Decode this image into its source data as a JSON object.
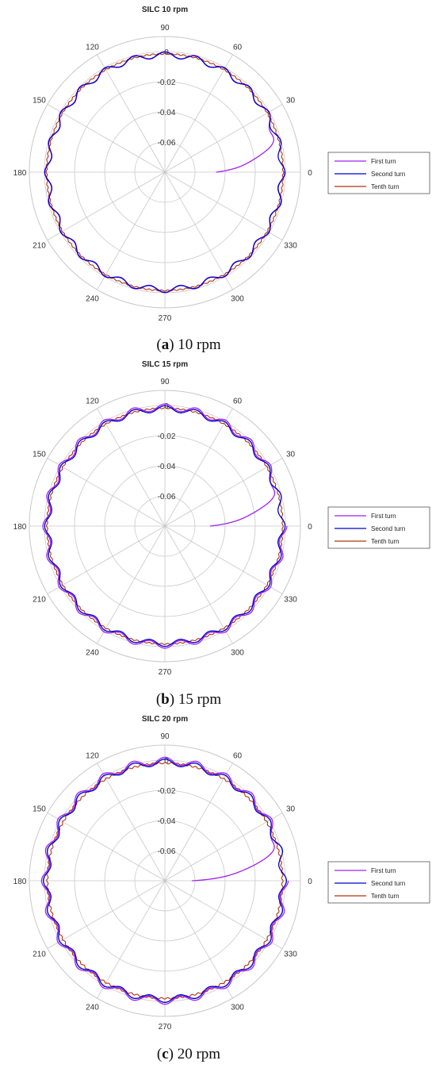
{
  "colors": {
    "first_turn": "#a020f0",
    "second_turn": "#0000cc",
    "tenth_turn": "#b03010",
    "grid": "#c8c8c8"
  },
  "chart_data": [
    {
      "type": "polar-line",
      "title": "SILC 10 rpm",
      "caption_letter": "a",
      "caption_text": " 10 rpm",
      "angle_labels": [
        "0",
        "30",
        "60",
        "90",
        "120",
        "150",
        "180",
        "210",
        "240",
        "270",
        "300",
        "330"
      ],
      "radial_ticks": [
        "-0.06",
        "-0.04",
        "-0.02",
        "0"
      ],
      "rlim": [
        -0.08,
        0.01
      ],
      "grid": true,
      "legend_position": "right",
      "series": [
        {
          "name": "First turn",
          "color_key": "first_turn",
          "base": -0.0022,
          "ripple_amplitude": 0.0021,
          "ripple_cycles": 24,
          "start_radius": -0.046,
          "transient_end_deg": 30
        },
        {
          "name": "Second turn",
          "color_key": "second_turn",
          "base": -0.0022,
          "ripple_amplitude": 0.0019,
          "ripple_cycles": 24
        },
        {
          "name": "Tenth turn",
          "color_key": "tenth_turn",
          "base": -0.0015,
          "ripple_amplitude": 0.0004,
          "ripple_cycles": 120
        }
      ]
    },
    {
      "type": "polar-line",
      "title": "SILC 15 rpm",
      "caption_letter": "b",
      "caption_text": " 15 rpm",
      "angle_labels": [
        "0",
        "30",
        "60",
        "90",
        "120",
        "150",
        "180",
        "210",
        "240",
        "270",
        "300",
        "330"
      ],
      "radial_ticks": [
        "-0.06",
        "-0.04",
        "-0.02",
        "0"
      ],
      "rlim": [
        -0.08,
        0.01
      ],
      "grid": true,
      "legend_position": "right",
      "series": [
        {
          "name": "First turn",
          "color_key": "first_turn",
          "base": -0.0012,
          "ripple_amplitude": 0.0022,
          "ripple_cycles": 24,
          "start_radius": -0.05,
          "transient_end_deg": 30
        },
        {
          "name": "Second turn",
          "color_key": "second_turn",
          "base": -0.0022,
          "ripple_amplitude": 0.002,
          "ripple_cycles": 24
        },
        {
          "name": "Tenth turn",
          "color_key": "tenth_turn",
          "base": -0.0018,
          "ripple_amplitude": 0.0004,
          "ripple_cycles": 120
        }
      ]
    },
    {
      "type": "polar-line",
      "title": "SILC 20 rpm",
      "caption_letter": "c",
      "caption_text": " 20 rpm",
      "angle_labels": [
        "0",
        "30",
        "60",
        "90",
        "120",
        "150",
        "180",
        "210",
        "240",
        "270",
        "300",
        "330"
      ],
      "radial_ticks": [
        "-0.06",
        "-0.04",
        "-0.02",
        "0"
      ],
      "rlim": [
        -0.08,
        0.01
      ],
      "grid": true,
      "legend_position": "right",
      "series": [
        {
          "name": "First turn",
          "color_key": "first_turn",
          "base": -0.0005,
          "ripple_amplitude": 0.0024,
          "ripple_cycles": 24,
          "start_radius": -0.062,
          "transient_end_deg": 30
        },
        {
          "name": "Second turn",
          "color_key": "second_turn",
          "base": -0.0015,
          "ripple_amplitude": 0.0022,
          "ripple_cycles": 24
        },
        {
          "name": "Tenth turn",
          "color_key": "tenth_turn",
          "base": -0.002,
          "ripple_amplitude": 0.0005,
          "ripple_cycles": 120
        }
      ]
    }
  ]
}
